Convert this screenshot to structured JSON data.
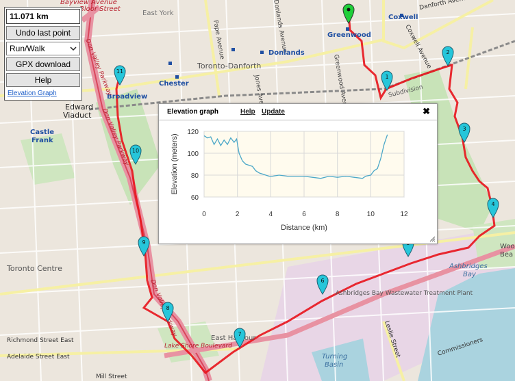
{
  "panel": {
    "distance": "11.071 km",
    "undo_label": "Undo last point",
    "mode_selected": "Run/Walk",
    "gpx_label": "GPX download",
    "help_label": "Help",
    "elevation_link": "Elevation Graph"
  },
  "popup": {
    "title": "Elevation graph",
    "help_label": "Help",
    "update_label": "Update",
    "close_glyph": "✖"
  },
  "chart_data": {
    "type": "line",
    "xlabel": "Distance (km)",
    "ylabel": "Elevation (meters)",
    "xlim": [
      0,
      12
    ],
    "ylim": [
      60,
      120
    ],
    "xticks": [
      0,
      2,
      4,
      6,
      8,
      10,
      12
    ],
    "yticks": [
      60,
      80,
      100,
      120
    ],
    "grid": true,
    "series": [
      {
        "color": "#4ba7c8",
        "x": [
          0.0,
          0.2,
          0.4,
          0.6,
          0.8,
          1.0,
          1.2,
          1.4,
          1.6,
          1.8,
          1.95,
          2.1,
          2.3,
          2.5,
          2.7,
          2.9,
          3.1,
          3.3,
          3.5,
          3.7,
          3.9,
          4.1,
          4.5,
          5.0,
          5.5,
          6.0,
          6.5,
          7.0,
          7.5,
          8.0,
          8.5,
          9.0,
          9.5,
          9.7,
          10.0,
          10.2,
          10.4,
          10.6,
          10.8,
          11.0
        ],
        "y": [
          116,
          114,
          115,
          108,
          113,
          107,
          112,
          108,
          114,
          110,
          113,
          100,
          93,
          90,
          89,
          88,
          84,
          82,
          81,
          80,
          79,
          79,
          80,
          79,
          79,
          79,
          78,
          77,
          79,
          78,
          79,
          78,
          77,
          79,
          80,
          84,
          86,
          95,
          108,
          117
        ]
      }
    ]
  },
  "map": {
    "labels": [
      {
        "text": "11.071 km",
        "kind": "none"
      },
      {
        "text": "Bayview Avenue",
        "kind": "road-red"
      },
      {
        "text": "Bloor Street",
        "kind": "road-red"
      },
      {
        "text": "East York",
        "kind": "district"
      },
      {
        "text": "Pape Avenue",
        "kind": "street"
      },
      {
        "text": "Donlands Avenue",
        "kind": "street"
      },
      {
        "text": "Greenwood",
        "kind": "station"
      },
      {
        "text": "Coxwell",
        "kind": "station"
      },
      {
        "text": "Danforth Avenue",
        "kind": "street"
      },
      {
        "text": "Coxwell Avenue",
        "kind": "street"
      },
      {
        "text": "Donlands",
        "kind": "station"
      },
      {
        "text": "Toronto-Danforth",
        "kind": "district"
      },
      {
        "text": "Chester",
        "kind": "station"
      },
      {
        "text": "Broadview",
        "kind": "station"
      },
      {
        "text": "Edward",
        "kind": "place"
      },
      {
        "text": "Viaduct",
        "kind": "place"
      },
      {
        "text": "Castle",
        "kind": "station"
      },
      {
        "text": "Frank",
        "kind": "station"
      },
      {
        "text": "Don Valley Parkway",
        "kind": "road-red"
      },
      {
        "text": "Toronto Centre",
        "kind": "district"
      },
      {
        "text": "Richmond Street East",
        "kind": "street"
      },
      {
        "text": "Adelaide Street East",
        "kind": "street"
      },
      {
        "text": "Mill Street",
        "kind": "street"
      },
      {
        "text": "Lake Shore Boulevard",
        "kind": "road-red"
      },
      {
        "text": "East Harbour",
        "kind": "place"
      },
      {
        "text": "Turning",
        "kind": "water"
      },
      {
        "text": "Basin",
        "kind": "water"
      },
      {
        "text": "Ashbridges Bay Wastewater Treatment Plant",
        "kind": "place"
      },
      {
        "text": "Ashbridges",
        "kind": "water"
      },
      {
        "text": "Bay",
        "kind": "water"
      },
      {
        "text": "Leslie Street",
        "kind": "street"
      },
      {
        "text": "Subdivision",
        "kind": "street"
      },
      {
        "text": "Jones Avenue",
        "kind": "street"
      },
      {
        "text": "Greenwood Avenue",
        "kind": "street"
      },
      {
        "text": "Woo",
        "kind": "place"
      },
      {
        "text": "Bea",
        "kind": "place"
      },
      {
        "text": "Commissioners",
        "kind": "street"
      }
    ],
    "markers": [
      "1",
      "2",
      "3",
      "4",
      "5",
      "6",
      "7",
      "8",
      "9",
      "10",
      "11"
    ]
  }
}
